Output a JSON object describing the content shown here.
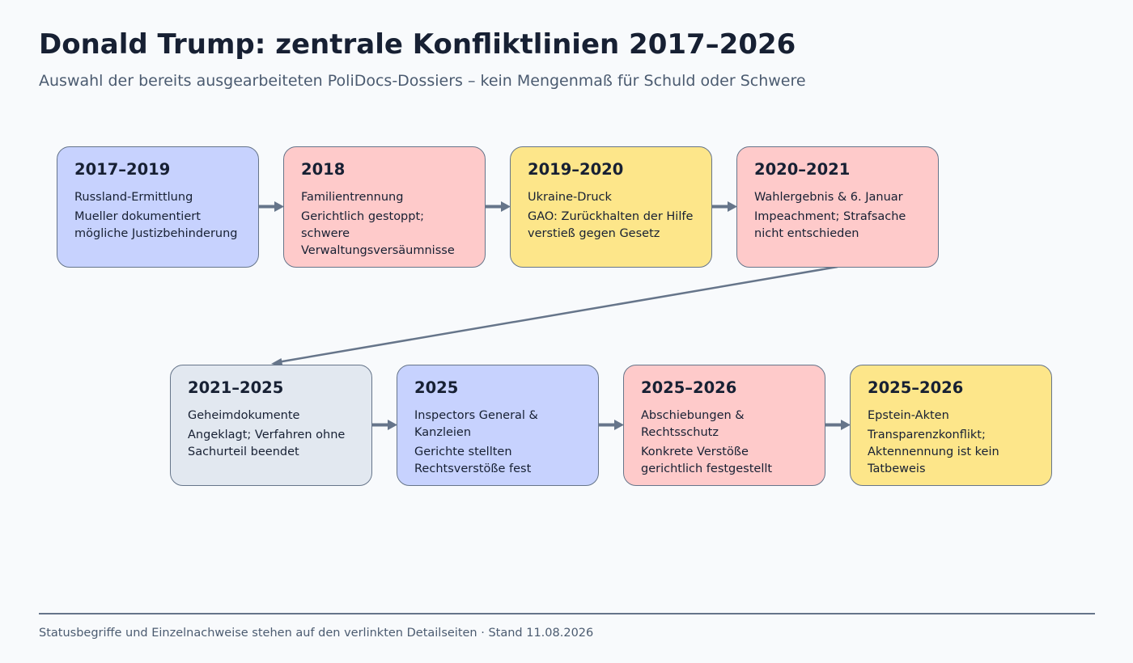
{
  "header": {
    "title": "Donald Trump: zentrale Konfliktlinien 2017–2026",
    "subtitle": "Auswahl der bereits ausgearbeiteten PoliDocs-Dossiers – kein Mengenmaß für Schuld oder Schwere"
  },
  "colors": {
    "blue": "#c7d2fe",
    "red": "#fecaca",
    "yellow": "#fde68a",
    "gray": "#e2e8f0",
    "border": "#66758a",
    "connector": "#66758a"
  },
  "cards": [
    {
      "period": "2017–2019",
      "topic": "Russland-Ermittlung",
      "note": "Mueller dokumentiert mögliche Justizbehinderung",
      "color": "#c7d2fe"
    },
    {
      "period": "2018",
      "topic": "Familientrennung",
      "note": "Gerichtlich gestoppt; schwere Verwaltungsversäumnisse",
      "color": "#fecaca"
    },
    {
      "period": "2019–2020",
      "topic": "Ukraine-Druck",
      "note": "GAO: Zurückhalten der Hilfe verstieß gegen Gesetz",
      "color": "#fde68a"
    },
    {
      "period": "2020–2021",
      "topic": "Wahlergebnis & 6. Januar",
      "note": "Impeachment; Strafsache nicht entschieden",
      "color": "#fecaca"
    },
    {
      "period": "2021–2025",
      "topic": "Geheimdokumente",
      "note": "Angeklagt; Verfahren ohne Sachurteil beendet",
      "color": "#e2e8f0"
    },
    {
      "period": "2025",
      "topic": "Inspectors General & Kanzleien",
      "note": "Gerichte stellten Rechtsverstöße fest",
      "color": "#c7d2fe"
    },
    {
      "period": "2025–2026",
      "topic": "Abschiebungen & Rechtsschutz",
      "note": "Konkrete Verstöße gerichtlich festgestellt",
      "color": "#fecaca"
    },
    {
      "period": "2025–2026",
      "topic": "Epstein-Akten",
      "note": "Transparenzkonflikt; Aktennennung ist kein Tatbeweis",
      "color": "#fde68a"
    }
  ],
  "footer": {
    "text": "Statusbegriffe und Einzelnachweise stehen auf den verlinkten Detailseiten · Stand 11.08.2026"
  }
}
